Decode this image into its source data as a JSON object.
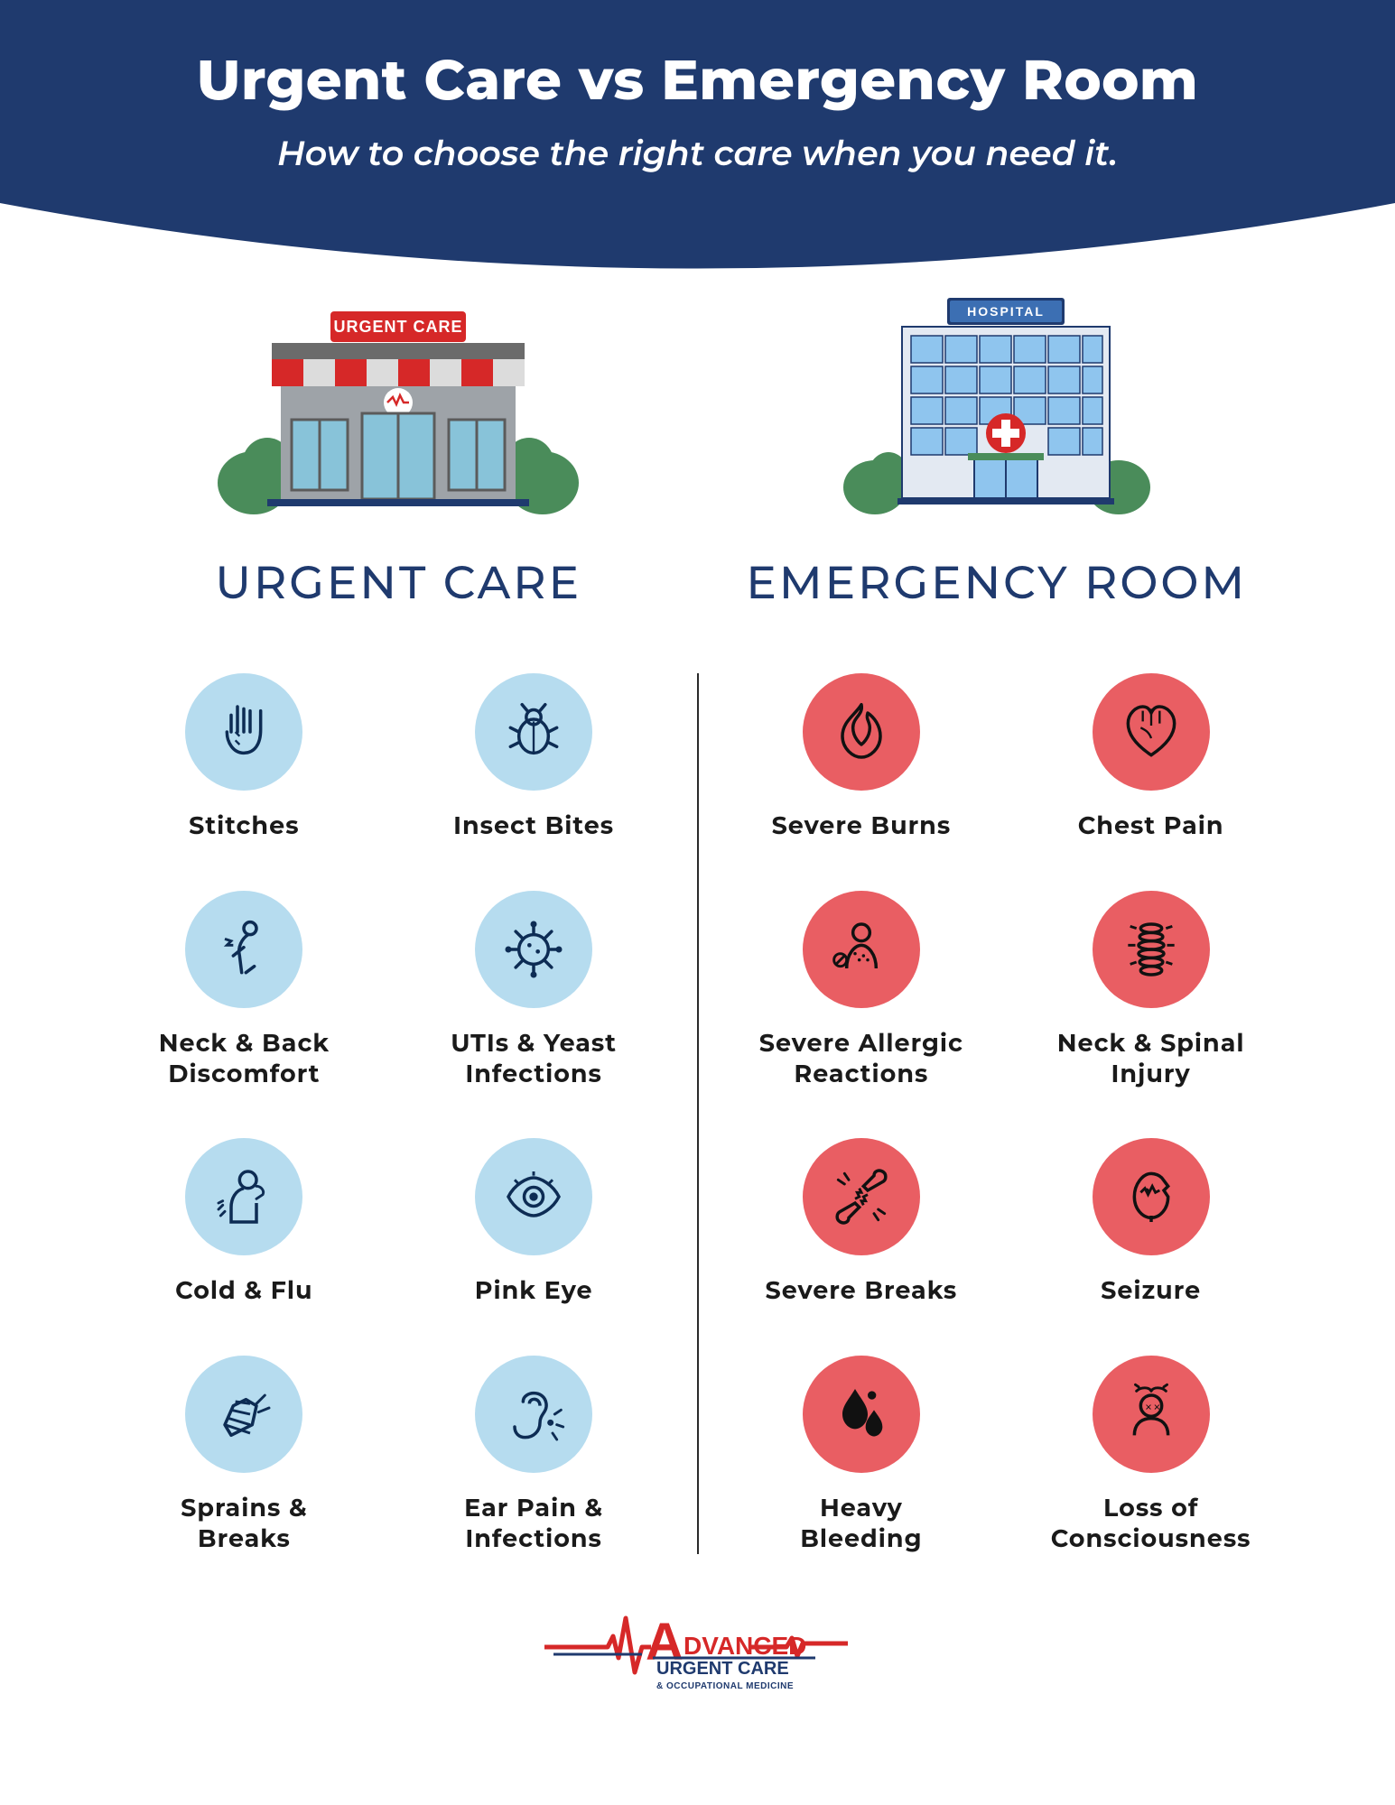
{
  "colors": {
    "header_bg": "#1f3a6e",
    "white": "#ffffff",
    "heading": "#1f3a6e",
    "text": "#1a1a1a",
    "uc_disc": "#b6dcef",
    "uc_icon": "#0d2c54",
    "er_disc": "#e95e63",
    "er_icon": "#111111",
    "logo_red": "#d62828",
    "logo_blue": "#1f3a6e"
  },
  "header": {
    "title": "Urgent Care vs Emergency Room",
    "subtitle": "How to choose the right care when you need it."
  },
  "headings": {
    "urgent_care": "URGENT CARE",
    "emergency_room": "EMERGENCY ROOM"
  },
  "urgent_care": {
    "building_sign": "URGENT CARE",
    "items": [
      {
        "label": "Stitches",
        "icon": "hand"
      },
      {
        "label": "Insect Bites",
        "icon": "bug"
      },
      {
        "label": "Neck & Back\nDiscomfort",
        "icon": "backpain"
      },
      {
        "label": "UTIs & Yeast\nInfections",
        "icon": "germ"
      },
      {
        "label": "Cold & Flu",
        "icon": "cough"
      },
      {
        "label": "Pink Eye",
        "icon": "eye"
      },
      {
        "label": "Sprains &\nBreaks",
        "icon": "bandage"
      },
      {
        "label": "Ear Pain &\nInfections",
        "icon": "ear"
      }
    ]
  },
  "emergency_room": {
    "building_sign": "HOSPITAL",
    "items": [
      {
        "label": "Severe Burns",
        "icon": "flame"
      },
      {
        "label": "Chest Pain",
        "icon": "heart"
      },
      {
        "label": "Severe Allergic\nReactions",
        "icon": "allergy"
      },
      {
        "label": "Neck & Spinal\nInjury",
        "icon": "spine"
      },
      {
        "label": "Severe Breaks",
        "icon": "brokenbone"
      },
      {
        "label": "Seizure",
        "icon": "brain"
      },
      {
        "label": "Heavy\nBleeding",
        "icon": "bleed"
      },
      {
        "label": "Loss of\nConsciousness",
        "icon": "dizzy"
      }
    ]
  },
  "footer": {
    "line1": "DVANCED",
    "line2": "URGENT CARE",
    "line3": "& OCCUPATIONAL MEDICINE"
  }
}
